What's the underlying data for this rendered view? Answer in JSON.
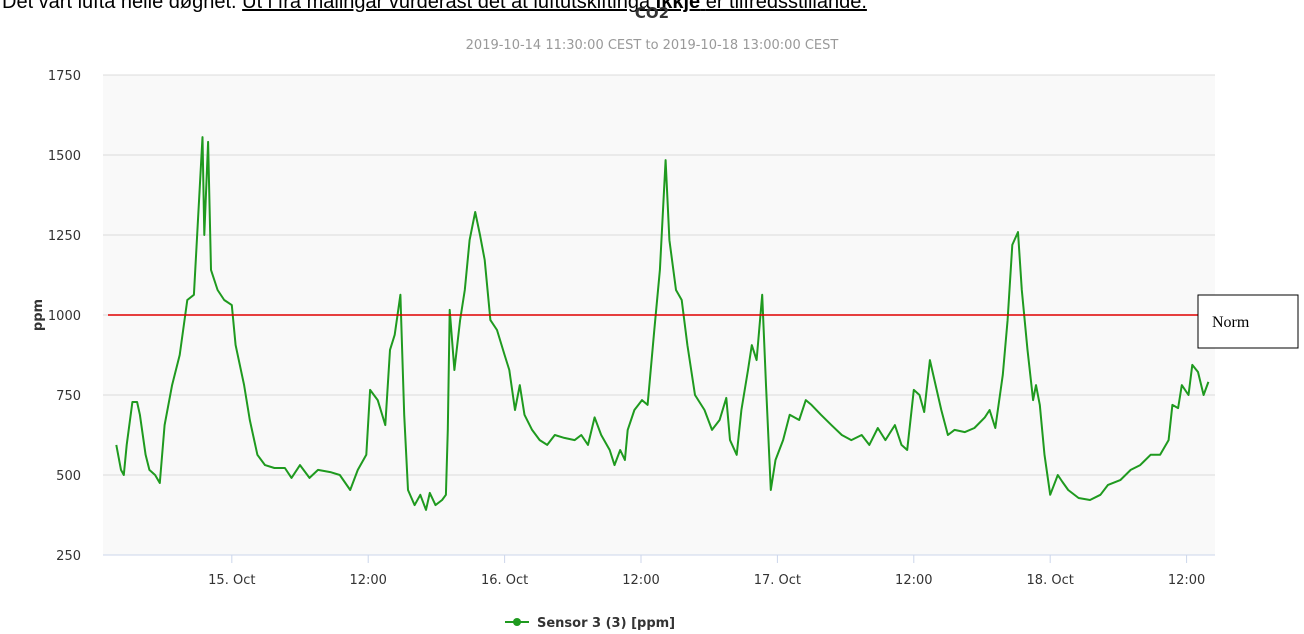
{
  "document": {
    "text_before": "Det vart lufta heile døgnet.",
    "underlined_before": "Ut i frå målingar vurderast det at luftutskiftinga",
    "bold": "ikkje",
    "underlined_after": "er tilfredsstillande."
  },
  "chart_data": {
    "type": "line",
    "title": "CO2",
    "subtitle": "2019-10-14 11:30:00 CEST to 2019-10-18 13:00:00 CEST",
    "y_label": "ppm",
    "xlim": [
      "2019-10-14 12:40",
      "2019-10-18 14:30"
    ],
    "xticks": [
      {
        "value": "2019-10-15 00:00",
        "label": "15. Oct"
      },
      {
        "value": "2019-10-15 12:00",
        "label": "12:00"
      },
      {
        "value": "2019-10-16 00:00",
        "label": "16. Oct"
      },
      {
        "value": "2019-10-16 12:00",
        "label": "12:00"
      },
      {
        "value": "2019-10-17 00:00",
        "label": "17. Oct"
      },
      {
        "value": "2019-10-17 12:00",
        "label": "12:00"
      },
      {
        "value": "2019-10-18 00:00",
        "label": "18. Oct"
      },
      {
        "value": "2019-10-18 12:00",
        "label": "12:00"
      }
    ],
    "ylim": [
      250,
      1750
    ],
    "yticks": [
      250,
      500,
      750,
      1000,
      1250,
      1500,
      1750
    ],
    "grid": true,
    "norm": {
      "value": 1000,
      "label": "Norm",
      "color": "#e00000"
    },
    "x": [
      "2019-10-14 13:50",
      "2019-10-14 14:15",
      "2019-10-14 14:30",
      "2019-10-14 14:45",
      "2019-10-14 15:15",
      "2019-10-14 15:40",
      "2019-10-14 15:55",
      "2019-10-14 16:25",
      "2019-10-14 16:45",
      "2019-10-14 17:15",
      "2019-10-14 17:40",
      "2019-10-14 18:05",
      "2019-10-14 18:45",
      "2019-10-14 19:25",
      "2019-10-14 20:05",
      "2019-10-14 20:40",
      "2019-10-14 21:00",
      "2019-10-14 21:25",
      "2019-10-14 21:35",
      "2019-10-14 21:55",
      "2019-10-14 22:10",
      "2019-10-14 22:45",
      "2019-10-14 23:20",
      "2019-10-15 00:00",
      "2019-10-15 00:20",
      "2019-10-15 01:05",
      "2019-10-15 01:35",
      "2019-10-15 02:15",
      "2019-10-15 02:55",
      "2019-10-15 03:45",
      "2019-10-15 04:40",
      "2019-10-15 05:15",
      "2019-10-15 06:00",
      "2019-10-15 06:50",
      "2019-10-15 07:35",
      "2019-10-15 08:40",
      "2019-10-15 09:30",
      "2019-10-15 10:25",
      "2019-10-15 11:05",
      "2019-10-15 11:50",
      "2019-10-15 12:10",
      "2019-10-15 12:50",
      "2019-10-15 13:30",
      "2019-10-15 13:55",
      "2019-10-15 14:20",
      "2019-10-15 14:50",
      "2019-10-15 15:10",
      "2019-10-15 15:30",
      "2019-10-15 16:05",
      "2019-10-15 16:35",
      "2019-10-15 17:05",
      "2019-10-15 17:25",
      "2019-10-15 17:55",
      "2019-10-15 18:30",
      "2019-10-15 18:50",
      "2019-10-15 19:00",
      "2019-10-15 19:10",
      "2019-10-15 19:35",
      "2019-10-15 20:05",
      "2019-10-15 20:30",
      "2019-10-15 20:55",
      "2019-10-15 21:25",
      "2019-10-15 21:50",
      "2019-10-15 22:15",
      "2019-10-15 22:45",
      "2019-10-15 23:20",
      "2019-10-16 00:00",
      "2019-10-16 00:25",
      "2019-10-16 00:55",
      "2019-10-16 01:20",
      "2019-10-16 01:45",
      "2019-10-16 02:25",
      "2019-10-16 03:05",
      "2019-10-16 03:45",
      "2019-10-16 04:25",
      "2019-10-16 05:15",
      "2019-10-16 06:10",
      "2019-10-16 06:45",
      "2019-10-16 07:20",
      "2019-10-16 07:55",
      "2019-10-16 08:30",
      "2019-10-16 09:15",
      "2019-10-16 09:40",
      "2019-10-16 10:10",
      "2019-10-16 10:35",
      "2019-10-16 10:50",
      "2019-10-16 11:25",
      "2019-10-16 12:05",
      "2019-10-16 12:35",
      "2019-10-16 13:10",
      "2019-10-16 13:40",
      "2019-10-16 14:10",
      "2019-10-16 14:30",
      "2019-10-16 15:05",
      "2019-10-16 15:35",
      "2019-10-16 16:05",
      "2019-10-16 16:45",
      "2019-10-16 17:35",
      "2019-10-16 18:15",
      "2019-10-16 18:55",
      "2019-10-16 19:30",
      "2019-10-16 19:50",
      "2019-10-16 20:25",
      "2019-10-16 20:50",
      "2019-10-16 21:25",
      "2019-10-16 21:45",
      "2019-10-16 22:10",
      "2019-10-16 22:40",
      "2019-10-16 23:00",
      "2019-10-16 23:25",
      "2019-10-16 23:50",
      "2019-10-17 00:30",
      "2019-10-17 01:05",
      "2019-10-17 01:55",
      "2019-10-17 02:30",
      "2019-10-17 03:00",
      "2019-10-17 03:50",
      "2019-10-17 04:45",
      "2019-10-17 05:40",
      "2019-10-17 06:30",
      "2019-10-17 07:25",
      "2019-10-17 08:05",
      "2019-10-17 08:50",
      "2019-10-17 09:30",
      "2019-10-17 10:20",
      "2019-10-17 10:55",
      "2019-10-17 11:25",
      "2019-10-17 12:00",
      "2019-10-17 12:30",
      "2019-10-17 12:55",
      "2019-10-17 13:25",
      "2019-10-17 13:55",
      "2019-10-17 14:25",
      "2019-10-17 15:00",
      "2019-10-17 15:35",
      "2019-10-17 16:30",
      "2019-10-17 17:20",
      "2019-10-17 18:15",
      "2019-10-17 18:40",
      "2019-10-17 19:10",
      "2019-10-17 19:50",
      "2019-10-17 20:15",
      "2019-10-17 20:40",
      "2019-10-17 21:10",
      "2019-10-17 21:30",
      "2019-10-17 22:00",
      "2019-10-17 22:30",
      "2019-10-17 22:45",
      "2019-10-17 23:05",
      "2019-10-17 23:30",
      "2019-10-18 00:00",
      "2019-10-18 00:40",
      "2019-10-18 01:05",
      "2019-10-18 01:35",
      "2019-10-18 02:30",
      "2019-10-18 03:30",
      "2019-10-18 04:25",
      "2019-10-18 05:05",
      "2019-10-18 06:10",
      "2019-10-18 07:05",
      "2019-10-18 07:55",
      "2019-10-18 08:50",
      "2019-10-18 09:40",
      "2019-10-18 10:25",
      "2019-10-18 10:45",
      "2019-10-18 11:15",
      "2019-10-18 11:35",
      "2019-10-18 12:10",
      "2019-10-18 12:30",
      "2019-10-18 13:00",
      "2019-10-18 13:30",
      "2019-10-18 13:55"
    ],
    "series": [
      {
        "name": "Sensor 3 (3) [ppm]",
        "color": "#1f9a1f",
        "values": [
          594,
          516,
          500,
          594,
          728,
          728,
          688,
          563,
          516,
          500,
          475,
          656,
          781,
          875,
          1047,
          1063,
          1281,
          1556,
          1250,
          1541,
          1141,
          1078,
          1047,
          1031,
          906,
          781,
          672,
          563,
          531,
          522,
          522,
          491,
          531,
          491,
          516,
          509,
          500,
          453,
          516,
          563,
          766,
          734,
          656,
          891,
          938,
          1063,
          688,
          453,
          406,
          438,
          391,
          444,
          406,
          422,
          438,
          641,
          1016,
          828,
          984,
          1078,
          1234,
          1322,
          1250,
          1172,
          984,
          953,
          875,
          828,
          703,
          781,
          688,
          641,
          609,
          594,
          625,
          616,
          609,
          625,
          594,
          680,
          625,
          578,
          531,
          578,
          547,
          641,
          703,
          734,
          719,
          953,
          1141,
          1484,
          1234,
          1078,
          1047,
          906,
          750,
          703,
          641,
          672,
          741,
          609,
          563,
          703,
          828,
          906,
          859,
          1063,
          781,
          453,
          547,
          609,
          688,
          672,
          734,
          719,
          688,
          656,
          625,
          609,
          625,
          594,
          647,
          609,
          656,
          594,
          578,
          766,
          750,
          697,
          859,
          781,
          703,
          625,
          641,
          634,
          647,
          680,
          703,
          647,
          813,
          984,
          1219,
          1259,
          1078,
          891,
          734,
          781,
          719,
          563,
          438,
          500,
          478,
          453,
          428,
          422,
          438,
          469,
          484,
          516,
          531,
          563,
          563,
          609,
          719,
          709,
          781,
          750,
          844,
          822,
          750,
          791
        ]
      }
    ]
  }
}
